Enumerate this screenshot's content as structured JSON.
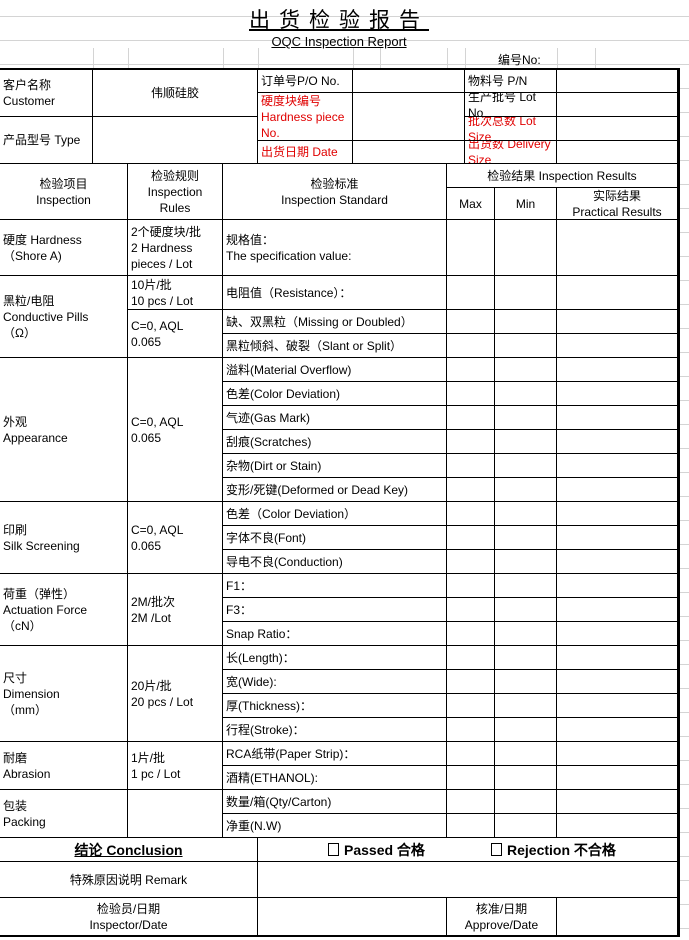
{
  "title": "出货检验报告",
  "subtitle": "OQC Inspection Report",
  "number_label": "编号No:",
  "info": {
    "customer_label": "客户名称\nCustomer",
    "customer_value": "伟顺硅胶",
    "type_label": "产品型号 Type",
    "po_label": "订单号P/O No.",
    "hardness_piece_label": "硬度块编号\nHardness piece No.",
    "date_label": "出货日期  Date",
    "pn_label": "物料号 P/N",
    "lot_no_label": "生产批号 Lot No",
    "lot_size_label": "批次总数 Lot Size",
    "delivery_label": "出货数  Delivery Size"
  },
  "table_header": {
    "item": "检验项目\nInspection",
    "rules": "检验规则\nInspection\nRules",
    "standard": "检验标准\nInspection Standard",
    "results": "检验结果 Inspection Results",
    "max": "Max",
    "min": "Min",
    "practical": "实际结果\nPractical Results"
  },
  "sections": [
    {
      "item": "硬度 Hardness\n（Shore A)",
      "rules": [
        {
          "text": "2个硬度块/批\n2 Hardness\npieces / Lot",
          "rows": 1
        }
      ],
      "standards": [
        "规格值：\nThe specification value:"
      ]
    },
    {
      "item": "黑粒/电阻\nConductive Pills\n（Ω）",
      "rules": [
        {
          "text": "10片/批\n10 pcs / Lot",
          "rows": 1
        },
        {
          "text": "C=0, AQL\n0.065",
          "rows": 2
        }
      ],
      "standards": [
        "电阻值（Resistance）：",
        "缺、双黑粒（Missing or Doubled）",
        "黑粒倾斜、破裂（Slant or Split）"
      ]
    },
    {
      "item": "外观\nAppearance",
      "rules": [
        {
          "text": "C=0, AQL\n0.065",
          "rows": 6
        }
      ],
      "standards": [
        "溢料(Material Overflow)",
        "色差(Color Deviation)",
        "气迹(Gas Mark)",
        "刮痕(Scratches)",
        "杂物(Dirt or Stain)",
        "变形/死键(Deformed or Dead Key)"
      ]
    },
    {
      "item": "印刷\nSilk Screening",
      "rules": [
        {
          "text": "C=0, AQL\n0.065",
          "rows": 3
        }
      ],
      "standards": [
        "色差（Color Deviation）",
        "字体不良(Font)",
        "导电不良(Conduction)"
      ]
    },
    {
      "item": "荷重（弹性）\nActuation Force\n（cN）",
      "rules": [
        {
          "text": "2M/批次\n2M  /Lot",
          "rows": 3
        }
      ],
      "standards": [
        "F1：",
        "F3：",
        "Snap Ratio："
      ]
    },
    {
      "item": "尺寸\nDimension\n（mm）",
      "rules": [
        {
          "text": "20片/批\n20 pcs / Lot",
          "rows": 4
        }
      ],
      "standards": [
        "长(Length)：",
        "宽(Wide):",
        "厚(Thickness)：",
        "行程(Stroke)："
      ]
    },
    {
      "item": "耐磨\nAbrasion",
      "rules": [
        {
          "text": "1片/批\n1 pc / Lot",
          "rows": 2
        }
      ],
      "standards": [
        "RCA纸带(Paper Strip)：",
        "酒精(ETHANOL):"
      ]
    },
    {
      "item": "包装\nPacking",
      "rules": [
        {
          "text": "",
          "rows": 2
        }
      ],
      "standards": [
        "数量/箱(Qty/Carton)",
        "净重(N.W)"
      ]
    }
  ],
  "conclusion": {
    "label": "结论 Conclusion",
    "passed": "Passed 合格",
    "rejection": "Rejection 不合格"
  },
  "remark_label": "特殊原因说明   Remark",
  "inspector_label": "检验员/日期\nInspector/Date",
  "approve_label": "核准/日期\nApprove/Date",
  "colors": {
    "red_label": "#e00000",
    "border": "#000000",
    "gridline": "#d4d4d4"
  }
}
